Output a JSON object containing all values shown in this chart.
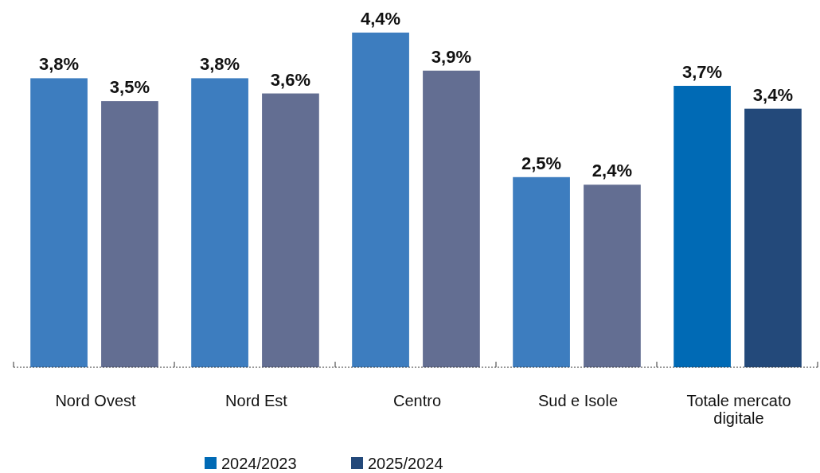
{
  "chart_data": {
    "type": "bar",
    "categories": [
      "Nord Ovest",
      "Nord Est",
      "Centro",
      "Sud e Isole",
      "Totale mercato digitale"
    ],
    "series": [
      {
        "name": "2024/2023",
        "color": "#006ab5",
        "colors": [
          "#3d7dbf",
          "#3d7dbf",
          "#3d7dbf",
          "#3d7dbf",
          "#006ab5"
        ],
        "values": [
          3.8,
          3.8,
          4.4,
          2.5,
          3.7
        ],
        "value_labels": [
          "3,8%",
          "3,8%",
          "4,4%",
          "2,5%",
          "3,7%"
        ]
      },
      {
        "name": "2025/2024",
        "color": "#23497a",
        "colors": [
          "#636e92",
          "#636e92",
          "#636e92",
          "#636e92",
          "#23497a"
        ],
        "values": [
          3.5,
          3.6,
          3.9,
          2.4,
          3.4
        ],
        "value_labels": [
          "3,5%",
          "3,6%",
          "3,9%",
          "2,4%",
          "3,4%"
        ]
      }
    ],
    "legend": "bottom"
  }
}
